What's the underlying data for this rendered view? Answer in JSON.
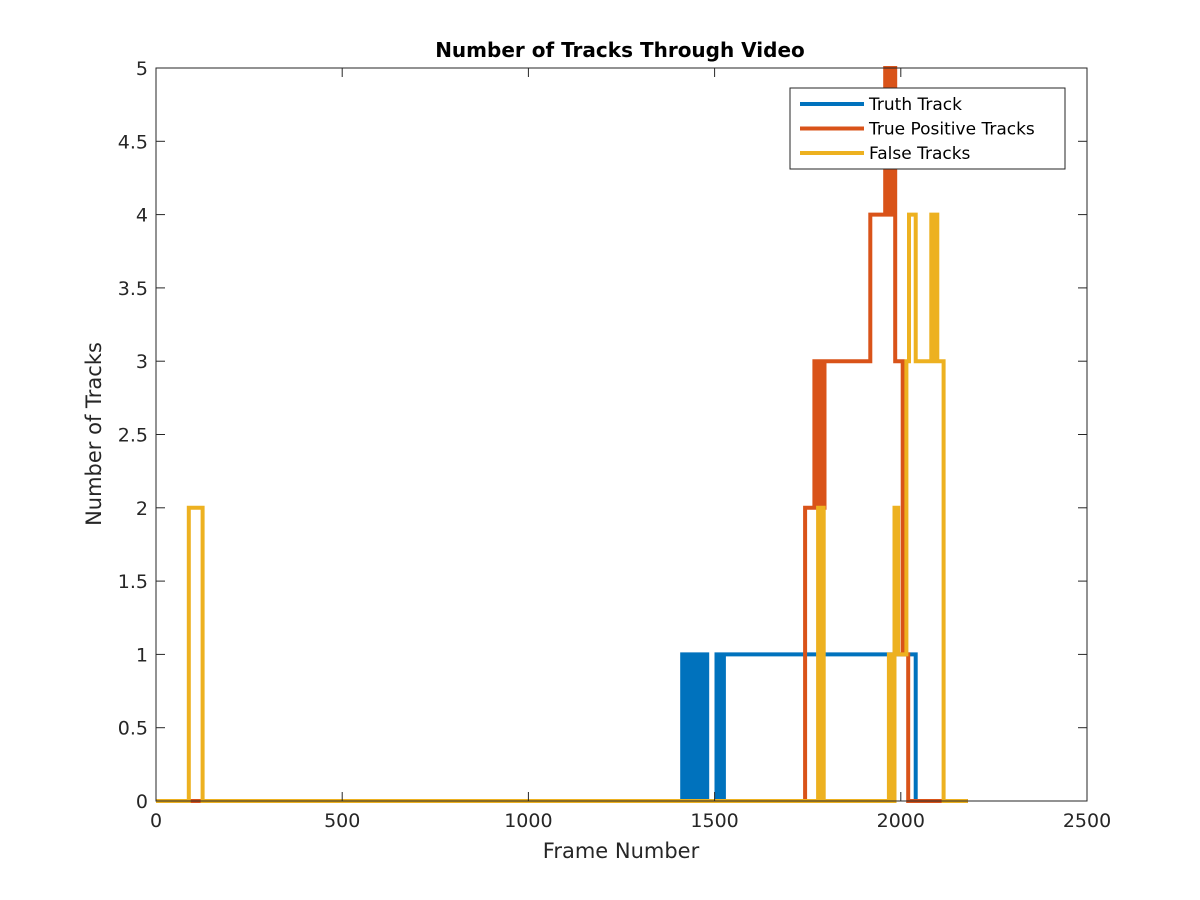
{
  "chart_data": {
    "type": "line",
    "title": "Number of Tracks Through Video",
    "xlabel": "Frame Number",
    "ylabel": "Number of Tracks",
    "xlim": [
      0,
      2500
    ],
    "ylim": [
      0,
      5
    ],
    "xticks": [
      0,
      500,
      1000,
      1500,
      2000,
      2500
    ],
    "yticks": [
      0,
      0.5,
      1,
      1.5,
      2,
      2.5,
      3,
      3.5,
      4,
      4.5,
      5
    ],
    "xtick_labels": [
      "0",
      "500",
      "1000",
      "1500",
      "2000",
      "2500"
    ],
    "ytick_labels": [
      "0",
      "0.5",
      "1",
      "1.5",
      "2",
      "2.5",
      "3",
      "3.5",
      "4",
      "4.5",
      "5"
    ],
    "grid": false,
    "legend": "top-right",
    "series": [
      {
        "name": "Truth Track",
        "color": "#0072BD",
        "x": [
          0,
          1413,
          1413,
          1418,
          1418,
          1423,
          1423,
          1428,
          1428,
          1433,
          1433,
          1438,
          1438,
          1443,
          1443,
          1448,
          1448,
          1453,
          1453,
          1458,
          1458,
          1463,
          1463,
          1468,
          1468,
          1473,
          1473,
          1480,
          1480,
          1505,
          1505,
          1515,
          1515,
          1525,
          1525,
          2040,
          2040,
          2180
        ],
        "y": [
          0,
          0,
          1,
          1,
          0,
          0,
          1,
          1,
          0,
          0,
          1,
          1,
          0,
          0,
          1,
          1,
          0,
          0,
          1,
          1,
          0,
          0,
          1,
          1,
          0,
          0,
          1,
          1,
          0,
          0,
          1,
          1,
          0,
          0,
          1,
          1,
          0,
          0
        ]
      },
      {
        "name": "True Positive Tracks",
        "color": "#D95319",
        "x": [
          0,
          1743,
          1743,
          1768,
          1768,
          1773,
          1773,
          1776,
          1776,
          1779,
          1779,
          1782,
          1782,
          1785,
          1785,
          1788,
          1788,
          1791,
          1791,
          1795,
          1795,
          1918,
          1918,
          1958,
          1958,
          1963,
          1963,
          1966,
          1966,
          1969,
          1969,
          1972,
          1972,
          1976,
          1976,
          1980,
          1980,
          1985,
          1985,
          2005,
          2005,
          2020,
          2020,
          2040,
          2040,
          2110,
          2110,
          2180
        ],
        "y": [
          0,
          0,
          2,
          2,
          3,
          3,
          2,
          2,
          3,
          3,
          2,
          2,
          3,
          3,
          2,
          2,
          3,
          3,
          2,
          2,
          3,
          3,
          4,
          4,
          5,
          5,
          4,
          4,
          5,
          5,
          4,
          4,
          5,
          5,
          4,
          4,
          5,
          5,
          3,
          3,
          1,
          1,
          0,
          0,
          0,
          0,
          0,
          0
        ]
      },
      {
        "name": "False Tracks",
        "color": "#EDB120",
        "x": [
          0,
          88,
          88,
          125,
          125,
          1778,
          1778,
          1781,
          1781,
          1784,
          1784,
          1787,
          1787,
          1790,
          1790,
          1793,
          1793,
          1968,
          1968,
          1978,
          1978,
          1983,
          1983,
          1993,
          1993,
          2015,
          2015,
          2022,
          2022,
          2040,
          2040,
          2082,
          2082,
          2087,
          2087,
          2092,
          2092,
          2098,
          2098,
          2115,
          2115,
          2180
        ],
        "y": [
          0,
          0,
          2,
          2,
          0,
          0,
          2,
          2,
          0,
          0,
          2,
          2,
          0,
          0,
          2,
          2,
          0,
          0,
          1,
          1,
          0,
          0,
          2,
          2,
          1,
          1,
          3,
          3,
          4,
          4,
          3,
          3,
          4,
          4,
          3,
          3,
          4,
          4,
          3,
          3,
          0,
          0
        ]
      }
    ]
  }
}
